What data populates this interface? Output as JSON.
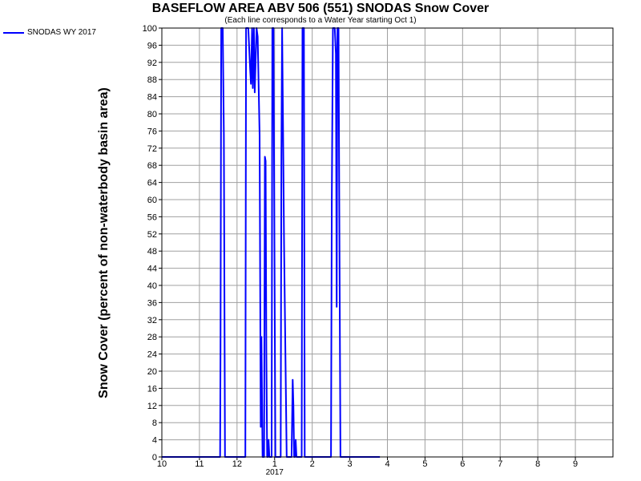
{
  "chart_data": {
    "type": "line",
    "title": "BASEFLOW AREA ABV 506 (551) SNODAS Snow Cover",
    "subtitle": "(Each line corresponds to a Water Year starting Oct 1)",
    "ylabel": "Snow Cover (percent of non-waterbody basin area)",
    "xlabel": "",
    "ylim": [
      0,
      100
    ],
    "yticks": [
      0,
      4,
      8,
      12,
      16,
      20,
      24,
      28,
      32,
      36,
      40,
      44,
      48,
      52,
      56,
      60,
      64,
      68,
      72,
      76,
      80,
      84,
      88,
      92,
      96,
      100
    ],
    "xlim": [
      0,
      12
    ],
    "xticks": [
      {
        "x": 0,
        "label": "10"
      },
      {
        "x": 1,
        "label": "11"
      },
      {
        "x": 2,
        "label": "12"
      },
      {
        "x": 3,
        "label": "1"
      },
      {
        "x": 4,
        "label": "2"
      },
      {
        "x": 5,
        "label": "3"
      },
      {
        "x": 6,
        "label": "4"
      },
      {
        "x": 7,
        "label": "5"
      },
      {
        "x": 8,
        "label": "6"
      },
      {
        "x": 9,
        "label": "7"
      },
      {
        "x": 10,
        "label": "8"
      },
      {
        "x": 11,
        "label": "9"
      }
    ],
    "year_label": {
      "x": 3,
      "label": "2017"
    },
    "grid": true,
    "legend_position": "top-left",
    "series": [
      {
        "name": "SNODAS WY 2017",
        "color": "#0000ff",
        "points": [
          [
            0,
            0
          ],
          [
            1.55,
            0
          ],
          [
            1.56,
            25
          ],
          [
            1.58,
            100
          ],
          [
            1.62,
            100
          ],
          [
            1.65,
            75
          ],
          [
            1.68,
            0
          ],
          [
            2.22,
            0
          ],
          [
            2.24,
            100
          ],
          [
            2.3,
            100
          ],
          [
            2.35,
            90
          ],
          [
            2.37,
            87
          ],
          [
            2.4,
            100
          ],
          [
            2.42,
            86
          ],
          [
            2.45,
            100
          ],
          [
            2.47,
            85
          ],
          [
            2.52,
            100
          ],
          [
            2.55,
            98
          ],
          [
            2.6,
            75
          ],
          [
            2.63,
            7
          ],
          [
            2.65,
            28
          ],
          [
            2.68,
            0
          ],
          [
            2.72,
            0
          ],
          [
            2.74,
            70
          ],
          [
            2.76,
            69
          ],
          [
            2.78,
            25
          ],
          [
            2.8,
            0
          ],
          [
            2.82,
            0
          ],
          [
            2.84,
            4
          ],
          [
            2.86,
            0
          ],
          [
            2.92,
            0
          ],
          [
            2.94,
            100
          ],
          [
            2.97,
            100
          ],
          [
            3.02,
            0
          ],
          [
            3.16,
            0
          ],
          [
            3.18,
            70
          ],
          [
            3.2,
            100
          ],
          [
            3.22,
            80
          ],
          [
            3.25,
            50
          ],
          [
            3.32,
            0
          ],
          [
            3.45,
            0
          ],
          [
            3.48,
            18
          ],
          [
            3.5,
            12
          ],
          [
            3.52,
            0
          ],
          [
            3.54,
            0
          ],
          [
            3.56,
            4
          ],
          [
            3.58,
            0
          ],
          [
            3.72,
            0
          ],
          [
            3.74,
            100
          ],
          [
            3.78,
            100
          ],
          [
            3.8,
            0
          ],
          [
            4.5,
            0
          ],
          [
            4.52,
            60
          ],
          [
            4.55,
            100
          ],
          [
            4.6,
            100
          ],
          [
            4.63,
            94
          ],
          [
            4.65,
            35
          ],
          [
            4.67,
            100
          ],
          [
            4.7,
            100
          ],
          [
            4.72,
            60
          ],
          [
            4.75,
            0
          ],
          [
            5.8,
            0
          ]
        ]
      }
    ]
  }
}
